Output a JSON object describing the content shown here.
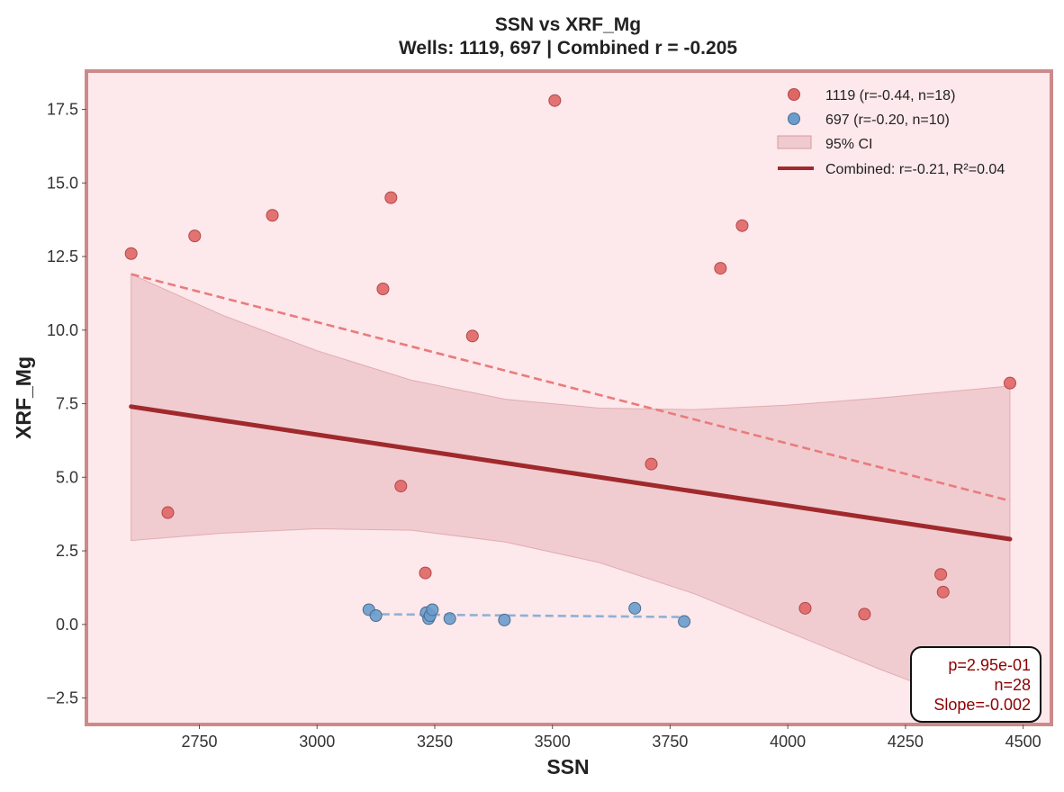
{
  "chart_data": {
    "type": "scatter",
    "title": "SSN vs XRF_Mg",
    "subtitle": "Wells: 1119, 697 | Combined r = -0.205",
    "xlabel": "SSN",
    "ylabel": "XRF_Mg",
    "xlim": [
      2510,
      4560
    ],
    "ylim": [
      -3.4,
      18.8
    ],
    "xticks": [
      2750,
      3000,
      3250,
      3500,
      3750,
      4000,
      4250,
      4500
    ],
    "yticks": [
      -2.5,
      0.0,
      2.5,
      5.0,
      7.5,
      10.0,
      12.5,
      15.0,
      17.5
    ],
    "xtick_labels": [
      "2750",
      "3000",
      "3250",
      "3500",
      "3750",
      "4000",
      "4250",
      "4500"
    ],
    "ytick_labels": [
      "−2.5",
      "0.0",
      "2.5",
      "5.0",
      "7.5",
      "10.0",
      "12.5",
      "15.0",
      "17.5"
    ],
    "grid": false,
    "legend_position": "top-right",
    "colors": {
      "plot_bg": "#fde8eb",
      "frame": "#cc8a8a",
      "series_1119": "#e06666",
      "series_697": "#6a9ccc",
      "fit_1119": "#e87c7c",
      "fit_697": "#8fb0d4",
      "combined_fit": "#a0292d",
      "ci_fill": "#e6b5ba",
      "stats_text": "#8b0000"
    },
    "series": [
      {
        "name": "1119 (r=-0.44, n=18)",
        "points": [
          [
            2605,
            12.6
          ],
          [
            2683,
            3.8
          ],
          [
            2740,
            13.2
          ],
          [
            2905,
            13.9
          ],
          [
            3140,
            11.4
          ],
          [
            3157,
            14.5
          ],
          [
            3178,
            4.7
          ],
          [
            3230,
            1.75
          ],
          [
            3330,
            9.8
          ],
          [
            3505,
            17.8
          ],
          [
            3710,
            5.45
          ],
          [
            3857,
            12.1
          ],
          [
            3903,
            13.55
          ],
          [
            4037,
            0.55
          ],
          [
            4163,
            0.35
          ],
          [
            4325,
            1.7
          ],
          [
            4330,
            1.1
          ],
          [
            4472,
            8.2
          ]
        ],
        "fit": [
          [
            2605,
            11.9
          ],
          [
            4472,
            4.2
          ]
        ]
      },
      {
        "name": "697 (r=-0.20, n=10)",
        "points": [
          [
            3110,
            0.5
          ],
          [
            3125,
            0.3
          ],
          [
            3232,
            0.4
          ],
          [
            3237,
            0.2
          ],
          [
            3240,
            0.3
          ],
          [
            3245,
            0.5
          ],
          [
            3282,
            0.2
          ],
          [
            3398,
            0.15
          ],
          [
            3675,
            0.55
          ],
          [
            3780,
            0.1
          ]
        ],
        "fit": [
          [
            3110,
            0.35
          ],
          [
            3780,
            0.25
          ]
        ]
      }
    ],
    "combined_fit": {
      "name": "Combined: r=-0.21, R²=0.04",
      "line": [
        [
          2605,
          7.4
        ],
        [
          4472,
          2.9
        ]
      ],
      "ci_label": "95% CI",
      "ci_upper": [
        [
          2605,
          11.9
        ],
        [
          2800,
          10.5
        ],
        [
          3000,
          9.3
        ],
        [
          3200,
          8.3
        ],
        [
          3400,
          7.65
        ],
        [
          3600,
          7.35
        ],
        [
          3800,
          7.3
        ],
        [
          4000,
          7.45
        ],
        [
          4200,
          7.7
        ],
        [
          4472,
          8.1
        ]
      ],
      "ci_lower": [
        [
          2605,
          2.85
        ],
        [
          2800,
          3.1
        ],
        [
          3000,
          3.25
        ],
        [
          3200,
          3.2
        ],
        [
          3400,
          2.8
        ],
        [
          3600,
          2.1
        ],
        [
          3800,
          1.05
        ],
        [
          4000,
          -0.25
        ],
        [
          4200,
          -1.55
        ],
        [
          4472,
          -3.2
        ]
      ]
    },
    "annotations": {
      "stats": [
        "p=2.95e-01",
        "n=28",
        "Slope=-0.002"
      ]
    }
  }
}
